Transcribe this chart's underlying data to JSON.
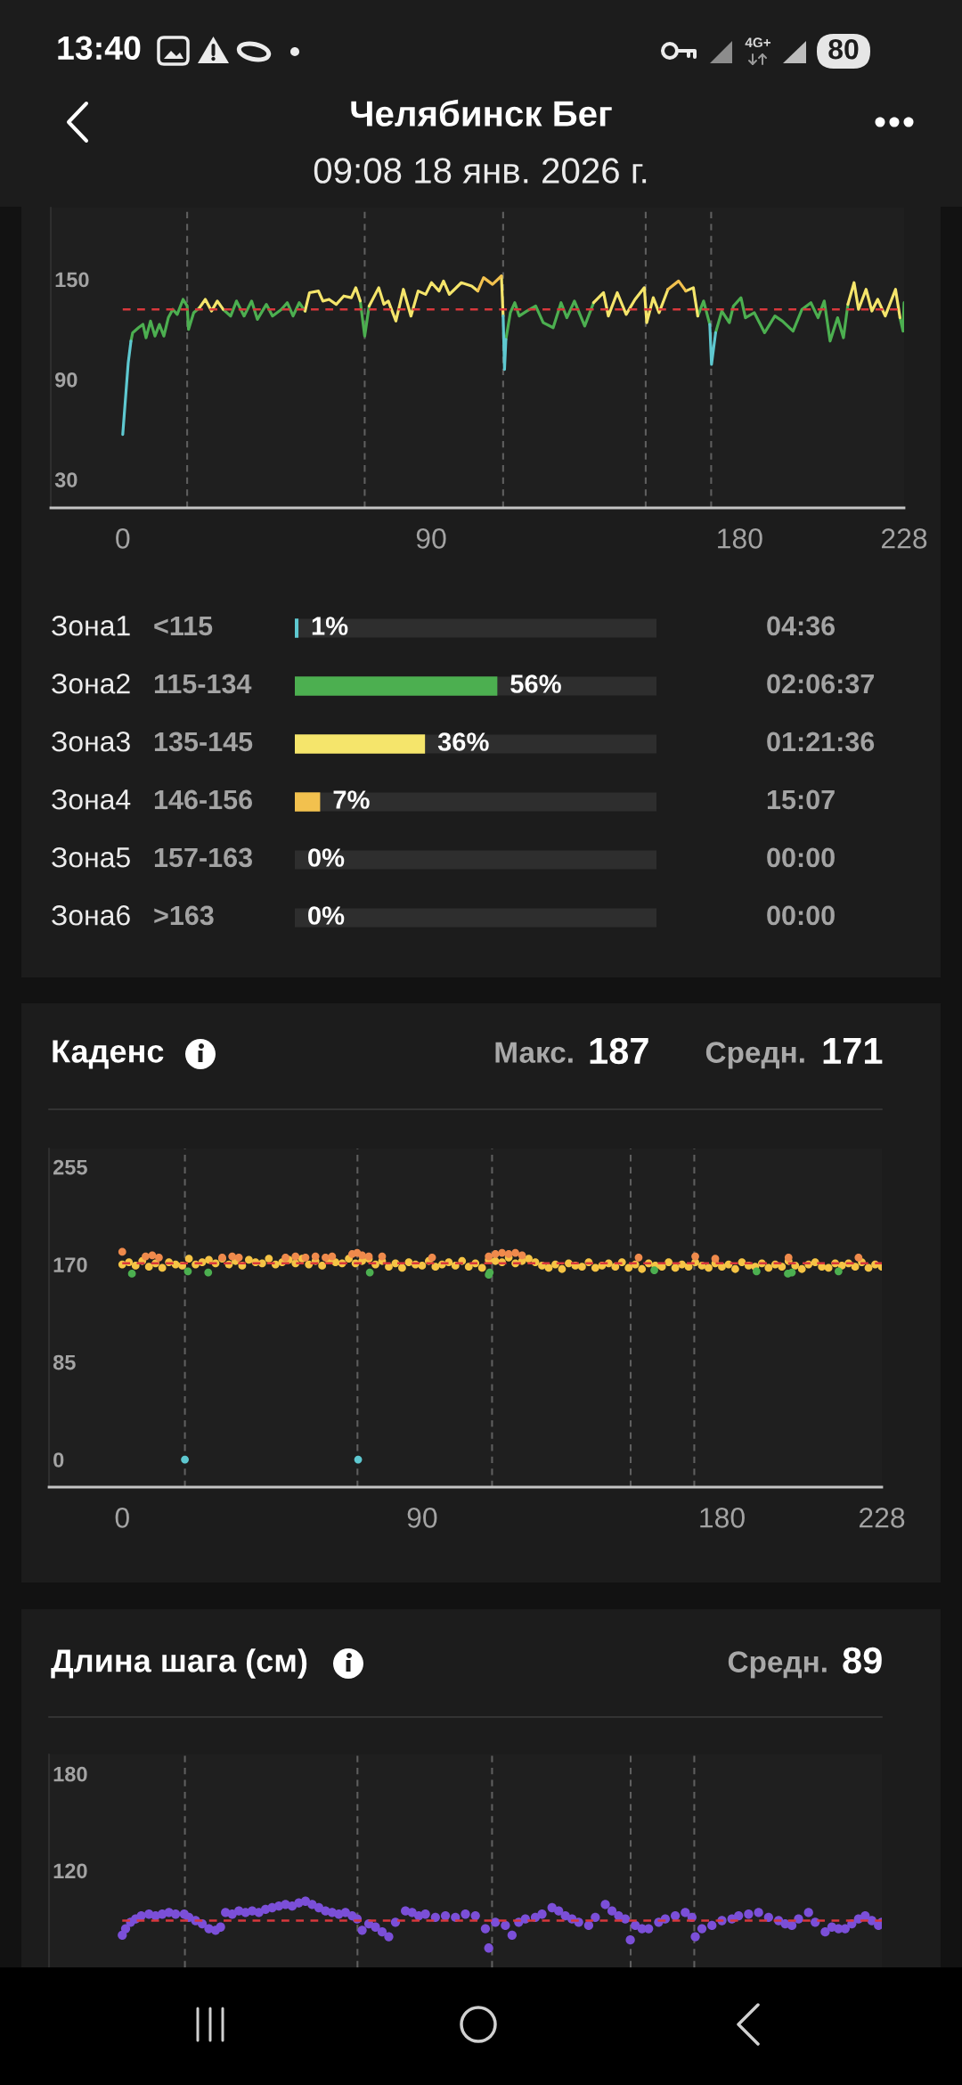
{
  "chart_data": [
    {
      "type": "other",
      "title": "Челябинск Бег",
      "subtitle": "09:08 18 янв. 2026 г.",
      "annotations": [
        "13:40",
        "4G+",
        "80"
      ]
    },
    {
      "type": "line",
      "x": [
        0,
        1.6,
        2.4,
        2.9,
        4.6,
        5.9,
        6.8,
        8.1,
        9.4,
        10.7,
        12,
        13.3,
        14.6,
        15.9,
        17.6,
        18.8,
        19.2,
        20.7,
        22.4,
        24.1,
        25.9,
        27.6,
        29.3,
        31.5,
        33.2,
        35.4,
        37.6,
        39.3,
        41.9,
        43.7,
        46.3,
        48,
        49.7,
        51.5,
        53.2,
        54.5,
        57.1,
        58.4,
        60.2,
        62.3,
        64.5,
        66.7,
        68,
        69.3,
        70.6,
        71.9,
        74.7,
        76.2,
        77.5,
        79.7,
        81.9,
        84.1,
        86.2,
        88.4,
        90.1,
        92.3,
        93.6,
        95.3,
        98.8,
        101.8,
        103.6,
        105.3,
        107.9,
        110.5,
        111,
        111.4,
        111.8,
        113.1,
        114.4,
        115.7,
        117.9,
        120.5,
        122.7,
        125.6,
        127.9,
        129.6,
        131.8,
        134.8,
        137.4,
        140.3,
        141.7,
        144.3,
        146.9,
        149.5,
        152.2,
        152.9,
        154.8,
        156.5,
        159.1,
        162.2,
        164.3,
        166.5,
        167.8,
        169.5,
        171.3,
        171.8,
        173,
        174.8,
        177,
        178.2,
        180.4,
        181.7,
        184.3,
        187.3,
        190.3,
        192.5,
        195.6,
        198.2,
        200.8,
        202.9,
        204.7,
        206.4,
        208.6,
        210.3,
        211.6,
        213.4,
        214.7,
        216.9,
        218.6,
        220.3,
        222.5,
        225.5,
        226.8,
        227.7,
        228
      ],
      "series": [
        {
          "color": "#4caf50",
          "values": [
            null,
            null,
            113,
            118,
            121,
            123,
            115,
            125,
            116,
            123,
            116,
            127,
            132,
            129,
            138,
            134,
            120,
            130,
            133,
            null,
            null,
            null,
            132,
            128,
            137,
            128,
            137,
            126,
            135,
            128,
            132,
            136,
            128,
            136,
            131,
            null,
            null,
            null,
            null,
            null,
            null,
            null,
            null,
            137,
            116,
            134,
            null,
            null,
            null,
            null,
            null,
            null,
            null,
            null,
            null,
            null,
            null,
            null,
            null,
            null,
            null,
            null,
            null,
            null,
            null,
            null,
            114,
            130,
            136,
            128,
            131,
            134,
            124,
            121,
            136,
            127,
            137,
            122,
            136,
            null,
            null,
            null,
            null,
            null,
            null,
            null,
            null,
            null,
            null,
            null,
            null,
            null,
            128,
            137,
            123,
            null,
            118,
            131,
            124,
            134,
            139,
            127,
            130,
            118,
            128,
            125,
            119,
            132,
            136,
            127,
            137,
            113,
            127,
            115,
            135,
            null,
            null,
            null,
            null,
            null,
            null,
            null,
            127,
            119,
            136
          ]
        },
        {
          "color": "#f5e56b",
          "values": [
            null,
            null,
            null,
            null,
            null,
            null,
            null,
            null,
            null,
            null,
            null,
            null,
            null,
            null,
            null,
            null,
            null,
            null,
            133,
            138,
            131,
            137,
            132,
            null,
            null,
            null,
            null,
            null,
            null,
            null,
            null,
            null,
            null,
            null,
            131,
            142,
            143,
            137,
            138,
            135,
            140,
            139,
            145,
            137,
            null,
            134,
            145,
            135,
            137,
            125,
            144,
            128,
            143,
            141,
            148,
            143,
            149,
            141,
            148,
            146,
            143,
            null,
            null,
            152,
            128,
            null,
            null,
            null,
            null,
            null,
            null,
            null,
            null,
            null,
            null,
            null,
            null,
            null,
            136,
            142,
            128,
            142,
            129,
            138,
            145,
            124,
            139,
            130,
            144,
            null,
            143,
            145,
            128,
            null,
            null,
            null,
            null,
            null,
            null,
            null,
            null,
            null,
            null,
            null,
            null,
            null,
            null,
            null,
            null,
            null,
            null,
            null,
            null,
            null,
            135,
            148,
            132,
            144,
            131,
            138,
            128,
            144,
            127,
            null,
            null
          ]
        },
        {
          "color": "#f2c14e",
          "values": [
            null,
            null,
            null,
            null,
            null,
            null,
            null,
            null,
            null,
            null,
            null,
            null,
            null,
            null,
            null,
            null,
            null,
            null,
            null,
            null,
            null,
            null,
            null,
            null,
            null,
            null,
            null,
            null,
            null,
            null,
            null,
            null,
            null,
            null,
            null,
            null,
            null,
            null,
            null,
            null,
            null,
            null,
            null,
            null,
            null,
            null,
            null,
            null,
            null,
            null,
            null,
            null,
            null,
            null,
            null,
            null,
            null,
            null,
            null,
            null,
            143,
            151,
            147,
            152,
            null,
            null,
            null,
            null,
            null,
            null,
            null,
            null,
            null,
            null,
            null,
            null,
            null,
            null,
            null,
            null,
            null,
            null,
            null,
            null,
            null,
            null,
            null,
            null,
            144,
            149,
            143,
            null,
            null,
            null,
            null,
            null,
            null,
            null,
            null,
            null,
            null,
            null,
            null,
            null,
            null,
            null,
            null,
            null,
            null,
            null,
            null,
            null,
            null,
            null,
            null,
            null,
            null,
            null,
            null,
            null,
            null,
            null,
            null,
            null,
            null
          ]
        },
        {
          "color": "#5ec8d0",
          "values": [
            57,
            100,
            113,
            null,
            null,
            null,
            null,
            null,
            null,
            null,
            null,
            null,
            null,
            null,
            null,
            null,
            null,
            null,
            null,
            null,
            null,
            null,
            null,
            null,
            null,
            null,
            null,
            null,
            null,
            null,
            null,
            null,
            null,
            null,
            null,
            null,
            null,
            null,
            null,
            null,
            null,
            null,
            null,
            null,
            null,
            null,
            null,
            null,
            null,
            null,
            null,
            null,
            null,
            null,
            null,
            null,
            null,
            null,
            null,
            null,
            null,
            null,
            null,
            null,
            128,
            96,
            114,
            null,
            null,
            null,
            null,
            null,
            null,
            null,
            null,
            null,
            null,
            null,
            null,
            null,
            null,
            null,
            null,
            null,
            null,
            null,
            null,
            null,
            null,
            null,
            null,
            null,
            null,
            null,
            123,
            99,
            118,
            null,
            null,
            null,
            null,
            null,
            null,
            null,
            null,
            null,
            null,
            null,
            null,
            null,
            null,
            null,
            null,
            null,
            null,
            null,
            null,
            null,
            null,
            null,
            null,
            null,
            null,
            null,
            null
          ]
        }
      ],
      "xlim": [
        -21,
        228
      ],
      "ylim": [
        13,
        193
      ],
      "xticks": [
        0,
        90,
        180,
        228
      ],
      "yticks": [
        30,
        90,
        150
      ],
      "ref_lines": [
        {
          "axis": "y",
          "value": 132,
          "color": "#d8383c",
          "line_style": "dashed"
        },
        {
          "axis": "x",
          "value": 18.8,
          "color": "#5f5f5f",
          "line_style": "dashed"
        },
        {
          "axis": "x",
          "value": 70.6,
          "color": "#5f5f5f",
          "line_style": "dashed"
        },
        {
          "axis": "x",
          "value": 111,
          "color": "#5f5f5f",
          "line_style": "dashed"
        },
        {
          "axis": "x",
          "value": 152.6,
          "color": "#5f5f5f",
          "line_style": "dashed"
        },
        {
          "axis": "x",
          "value": 171.7,
          "color": "#5f5f5f",
          "line_style": "dashed"
        }
      ]
    },
    {
      "type": "bar",
      "orientation": "horizontal",
      "categories": [
        "Зона1 <115",
        "Зона2 115-134",
        "Зона3 135-145",
        "Зона4 146-156",
        "Зона5 157-163",
        "Зона6 >163"
      ],
      "series": [
        {
          "values": [
            1,
            56,
            36,
            7,
            0,
            0
          ],
          "colors": [
            "#5ec8d0",
            "#4caf50",
            "#f5e56b",
            "#f2c14e",
            null,
            null
          ],
          "value_labels": [
            "1%",
            "56%",
            "36%",
            "7%",
            "0%",
            "0%"
          ]
        }
      ],
      "xlim": [
        0,
        100
      ],
      "tick_labels": false,
      "grid": "y",
      "annotations": [
        "04:36",
        "02:06:37",
        "01:21:36",
        "15:07",
        "00:00",
        "00:00"
      ]
    },
    {
      "type": "scatter",
      "title": "Каденс",
      "annotations": [
        "Макс. 187",
        "Средн. 171"
      ],
      "marker": "circle",
      "series": [
        {
          "color": "#f5c445",
          "x": [
            0,
            2,
            4,
            6,
            8,
            10,
            12,
            14,
            16,
            18,
            20,
            22,
            24,
            26,
            28,
            30,
            32,
            34,
            36,
            38,
            40,
            42,
            44,
            46,
            48,
            50,
            52,
            54,
            56,
            58,
            60,
            62,
            64,
            66,
            68,
            70,
            72,
            74,
            76,
            78,
            80,
            82,
            84,
            86,
            88,
            90,
            92,
            94,
            96,
            98,
            100,
            102,
            104,
            106,
            108,
            110,
            112,
            114,
            116,
            118,
            120,
            122,
            124,
            126,
            128,
            130,
            132,
            134,
            136,
            138,
            140,
            142,
            144,
            146,
            148,
            150,
            152,
            154,
            156,
            158,
            160,
            162,
            164,
            166,
            168,
            170,
            172,
            174,
            176,
            178,
            180,
            182,
            184,
            186,
            188,
            190,
            192,
            194,
            196,
            198,
            200,
            202,
            204,
            206,
            208,
            210,
            212,
            214,
            216,
            218,
            220,
            222,
            224,
            226,
            228
          ],
          "values": [
            170,
            172,
            169,
            173,
            168,
            171,
            167,
            172,
            170,
            169,
            175,
            170,
            172,
            174,
            171,
            175,
            170,
            173,
            169,
            174,
            172,
            171,
            175,
            170,
            172,
            174,
            171,
            175,
            170,
            173,
            169,
            174,
            172,
            171,
            175,
            171,
            173,
            175,
            170,
            173,
            168,
            171,
            167,
            172,
            170,
            169,
            173,
            168,
            170,
            172,
            169,
            173,
            168,
            171,
            167,
            174,
            173,
            172,
            176,
            171,
            173,
            175,
            172,
            169,
            167,
            170,
            166,
            171,
            169,
            168,
            172,
            167,
            169,
            171,
            168,
            172,
            167,
            170,
            166,
            171,
            169,
            168,
            172,
            167,
            170,
            168,
            172,
            169,
            167,
            171,
            168,
            170,
            166,
            172,
            169,
            168,
            171,
            167,
            170,
            168,
            173,
            169,
            166,
            170,
            172,
            168,
            167,
            171,
            169,
            171,
            168,
            172,
            167,
            170,
            168
          ]
        },
        {
          "color": "#ef8a4c",
          "x": [
            0,
            7,
            9,
            11,
            30,
            33,
            35,
            49,
            52,
            55,
            58,
            61,
            63,
            69,
            70.5,
            72,
            74,
            78,
            93,
            110,
            112,
            114,
            116,
            118,
            120,
            155,
            172,
            178,
            200,
            221
          ],
          "values": [
            181,
            177,
            178,
            176,
            176,
            177,
            176,
            176,
            177,
            176,
            177,
            176,
            177,
            179,
            180,
            178,
            177,
            177,
            176,
            177,
            179,
            180,
            179,
            180,
            178,
            176,
            177,
            175,
            176,
            176
          ]
        },
        {
          "color": "#4caf50",
          "x": [
            2.9,
            19.7,
            25.8,
            74.3,
            110,
            110.3,
            159.7,
            190.4,
            199.8,
            201,
            215
          ],
          "values": [
            162,
            164,
            163,
            163,
            161,
            163,
            165,
            164,
            162,
            163,
            164
          ]
        },
        {
          "color": "#5ec8d0",
          "x": [
            18.8,
            70.8
          ],
          "values": [
            0,
            0
          ]
        }
      ],
      "xlim": [
        -22,
        228
      ],
      "ylim": [
        -24,
        271
      ],
      "xticks": [
        0,
        90,
        180,
        228
      ],
      "yticks": [
        0,
        85,
        170,
        255
      ],
      "ref_lines": [
        {
          "axis": "y",
          "value": 171,
          "color": "#d8383c",
          "line_style": "dashed"
        },
        {
          "axis": "x",
          "value": 18.8,
          "color": "#5f5f5f",
          "line_style": "dashed"
        },
        {
          "axis": "x",
          "value": 70.6,
          "color": "#5f5f5f",
          "line_style": "dashed"
        },
        {
          "axis": "x",
          "value": 111,
          "color": "#5f5f5f",
          "line_style": "dashed"
        },
        {
          "axis": "x",
          "value": 152.6,
          "color": "#5f5f5f",
          "line_style": "dashed"
        },
        {
          "axis": "x",
          "value": 171.7,
          "color": "#5f5f5f",
          "line_style": "dashed"
        }
      ]
    },
    {
      "type": "scatter",
      "title": "Длина шага (см)",
      "annotations": [
        "Средн. 89"
      ],
      "marker": "circle",
      "series": [
        {
          "color": "#7b4fd8",
          "x": [
            0,
            1,
            2.5,
            4,
            5.7,
            8,
            10,
            12,
            14,
            16,
            18.6,
            20,
            22,
            24,
            26,
            28,
            29.5,
            31,
            33,
            35,
            37,
            39,
            41,
            43,
            45,
            47,
            49,
            51,
            53,
            55,
            57,
            59,
            61,
            63,
            65,
            67,
            69,
            70.5,
            72,
            74,
            76,
            78,
            80,
            82,
            85,
            87,
            89,
            91,
            94,
            97,
            100,
            103,
            106,
            109,
            110,
            112,
            115,
            117,
            119,
            121,
            124,
            126,
            129,
            131,
            133,
            135,
            137,
            140,
            142,
            145,
            147,
            149,
            151,
            152.5,
            154,
            156,
            158,
            161,
            163,
            166,
            169,
            171,
            172,
            174,
            177,
            180,
            183,
            185,
            188,
            191,
            194,
            197,
            199,
            201,
            203,
            206,
            208,
            211,
            213,
            215,
            217,
            219,
            221,
            223,
            225,
            227,
            228
          ],
          "values": [
            80,
            84,
            88,
            90,
            92,
            93,
            92,
            93,
            94,
            93,
            93,
            91,
            89,
            87,
            84,
            83,
            85,
            94,
            93,
            95,
            94,
            95,
            94,
            96,
            97,
            98,
            99,
            98,
            100,
            101,
            99,
            97,
            95,
            94,
            93,
            94,
            92,
            90,
            83,
            87,
            85,
            82,
            79,
            88,
            95,
            94,
            92,
            93,
            91,
            92,
            91,
            93,
            92,
            84,
            72,
            88,
            86,
            80,
            88,
            90,
            91,
            93,
            97,
            95,
            92,
            90,
            88,
            86,
            91,
            99,
            95,
            92,
            90,
            77,
            86,
            84,
            84,
            88,
            90,
            92,
            94,
            91,
            79,
            84,
            86,
            89,
            90,
            92,
            93,
            94,
            91,
            89,
            87,
            86,
            90,
            94,
            88,
            82,
            85,
            84,
            84,
            87,
            90,
            92,
            89,
            86,
            88
          ]
        }
      ],
      "xlim": [
        -22,
        228
      ],
      "ylim": [
        60,
        192
      ],
      "yticks": [
        120,
        180
      ],
      "tick_labels": "y",
      "ref_lines": [
        {
          "axis": "y",
          "value": 89,
          "color": "#d8383c",
          "line_style": "dashed"
        },
        {
          "axis": "x",
          "value": 18.8,
          "color": "#5f5f5f",
          "line_style": "dashed"
        },
        {
          "axis": "x",
          "value": 70.6,
          "color": "#5f5f5f",
          "line_style": "dashed"
        },
        {
          "axis": "x",
          "value": 111,
          "color": "#5f5f5f",
          "line_style": "dashed"
        },
        {
          "axis": "x",
          "value": 152.6,
          "color": "#5f5f5f",
          "line_style": "dashed"
        },
        {
          "axis": "x",
          "value": 171.7,
          "color": "#5f5f5f",
          "line_style": "dashed"
        }
      ]
    }
  ]
}
